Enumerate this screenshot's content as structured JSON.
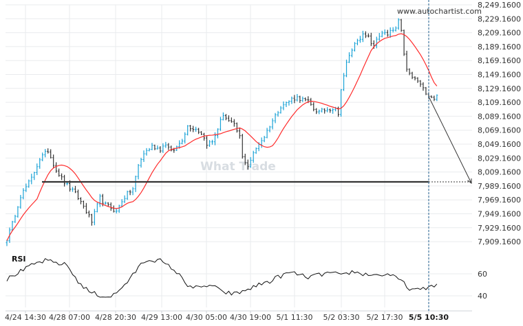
{
  "brand": {
    "site": "www.autochartist.com",
    "watermark": "What Trade"
  },
  "colors": {
    "candle": "#19a2d6",
    "bar": "#333333",
    "ma": "#ff2b2b",
    "level": "#333333",
    "grid": "#e9ebee",
    "axis_text": "#333333",
    "rsi": "#111111",
    "current": "#1e5d8c",
    "arrow": "#333333"
  },
  "chart_data": [
    {
      "type": "line",
      "panel": "price",
      "grid": true,
      "ylim": [
        7899,
        8259
      ],
      "y_ticks": [
        8249.16,
        8229.16,
        8209.16,
        8189.16,
        8169.16,
        8149.16,
        8129.16,
        8109.16,
        8089.16,
        8069.16,
        8049.16,
        8029.16,
        8009.16,
        7989.16,
        7969.16,
        7949.16,
        7929.16,
        7909.16
      ],
      "y_tick_labels": [
        "8,249.1600",
        "8,229.1600",
        "8,209.1600",
        "8,189.1600",
        "8,169.1600",
        "8,149.1600",
        "8,129.1600",
        "8,109.1600",
        "8,089.1600",
        "8,069.1600",
        "8,049.1600",
        "8,029.1600",
        "8,009.1600",
        "7,989.1600",
        "7,969.1600",
        "7,949.1600",
        "7,929.1600",
        "7,909.1600"
      ],
      "x_tick_labels": [
        "4/24 14:30",
        "4/28 07:00",
        "4/28 20:30",
        "4/29 13:00",
        "4/30 05:00",
        "4/30 19:00",
        "5/1 11:30",
        "5/2 03:30",
        "5/2 17:30",
        "5/5 10:30"
      ],
      "current_x_label": "5/5 10:30",
      "support_level": 7995,
      "projected_target": 7994,
      "price_anchors": [
        [
          0,
          7913
        ],
        [
          2,
          7935
        ],
        [
          5,
          7975
        ],
        [
          9,
          8000
        ],
        [
          12,
          8028
        ],
        [
          15,
          8040
        ],
        [
          18,
          8012
        ],
        [
          21,
          7994
        ],
        [
          25,
          7978
        ],
        [
          28,
          7960
        ],
        [
          31,
          7938
        ],
        [
          34,
          7972
        ],
        [
          36,
          7962
        ],
        [
          38,
          7958
        ],
        [
          40,
          7952
        ],
        [
          42,
          7968
        ],
        [
          44,
          7978
        ],
        [
          46,
          7985
        ],
        [
          48,
          8018
        ],
        [
          50,
          8036
        ],
        [
          53,
          8046
        ],
        [
          56,
          8042
        ],
        [
          58,
          8050
        ],
        [
          60,
          8038
        ],
        [
          62,
          8045
        ],
        [
          64,
          8056
        ],
        [
          66,
          8075
        ],
        [
          69,
          8071
        ],
        [
          71,
          8065
        ],
        [
          73,
          8050
        ],
        [
          75,
          8052
        ],
        [
          77,
          8072
        ],
        [
          79,
          8092
        ],
        [
          81,
          8082
        ],
        [
          83,
          8076
        ],
        [
          85,
          8060
        ],
        [
          86,
          8030
        ],
        [
          88,
          8018
        ],
        [
          90,
          8035
        ],
        [
          92,
          8050
        ],
        [
          94,
          8060
        ],
        [
          96,
          8076
        ],
        [
          98,
          8090
        ],
        [
          100,
          8104
        ],
        [
          102,
          8108
        ],
        [
          104,
          8114
        ],
        [
          106,
          8116
        ],
        [
          108,
          8113
        ],
        [
          110,
          8110
        ],
        [
          112,
          8100
        ],
        [
          114,
          8095
        ],
        [
          116,
          8098
        ],
        [
          118,
          8100
        ],
        [
          120,
          8102
        ],
        [
          121,
          8090
        ],
        [
          122,
          8130
        ],
        [
          124,
          8165
        ],
        [
          126,
          8185
        ],
        [
          128,
          8200
        ],
        [
          130,
          8205
        ],
        [
          132,
          8202
        ],
        [
          133,
          8195
        ],
        [
          134,
          8188
        ],
        [
          135,
          8200
        ],
        [
          137,
          8210
        ],
        [
          139,
          8205
        ],
        [
          140,
          8210
        ],
        [
          142,
          8215
        ],
        [
          143,
          8225
        ],
        [
          144,
          8210
        ],
        [
          145,
          8180
        ],
        [
          146,
          8155
        ],
        [
          148,
          8145
        ],
        [
          150,
          8140
        ],
        [
          152,
          8128
        ],
        [
          154,
          8120
        ],
        [
          156,
          8115
        ],
        [
          157,
          8118
        ]
      ],
      "series": [
        {
          "kind": "bars",
          "values_from": "price_anchors"
        },
        {
          "kind": "moving_average",
          "values_from": "price_anchors"
        }
      ]
    },
    {
      "type": "line",
      "panel": "indicator",
      "name": "RSI",
      "ylim": [
        30,
        75
      ],
      "y_ticks": [
        60,
        40
      ],
      "y_tick_labels": [
        "60",
        "40"
      ],
      "rsi_anchors": [
        [
          0,
          55
        ],
        [
          4,
          61
        ],
        [
          8,
          66
        ],
        [
          10,
          69
        ],
        [
          14,
          72
        ],
        [
          18,
          70
        ],
        [
          22,
          68
        ],
        [
          24,
          60
        ],
        [
          27,
          50
        ],
        [
          30,
          44
        ],
        [
          33,
          41
        ],
        [
          36,
          39
        ],
        [
          38,
          40
        ],
        [
          40,
          42
        ],
        [
          42,
          48
        ],
        [
          45,
          55
        ],
        [
          48,
          66
        ],
        [
          50,
          71
        ],
        [
          52,
          73
        ],
        [
          56,
          72
        ],
        [
          58,
          68
        ],
        [
          60,
          66
        ],
        [
          62,
          61
        ],
        [
          64,
          56
        ],
        [
          66,
          50
        ],
        [
          68,
          48
        ],
        [
          70,
          47
        ],
        [
          72,
          48
        ],
        [
          74,
          50
        ],
        [
          76,
          48
        ],
        [
          78,
          44
        ],
        [
          80,
          43
        ],
        [
          82,
          42
        ],
        [
          84,
          42
        ],
        [
          86,
          44
        ],
        [
          88,
          46
        ],
        [
          90,
          48
        ],
        [
          92,
          50
        ],
        [
          94,
          52
        ],
        [
          96,
          53
        ],
        [
          98,
          56
        ],
        [
          100,
          58
        ],
        [
          102,
          60
        ],
        [
          104,
          61
        ],
        [
          106,
          60
        ],
        [
          108,
          58
        ],
        [
          110,
          57
        ],
        [
          112,
          58
        ],
        [
          114,
          59
        ],
        [
          116,
          60
        ],
        [
          118,
          61
        ],
        [
          120,
          60
        ],
        [
          122,
          58
        ],
        [
          124,
          60
        ],
        [
          126,
          62
        ],
        [
          128,
          61
        ],
        [
          130,
          60
        ],
        [
          132,
          59
        ],
        [
          134,
          60
        ],
        [
          136,
          58
        ],
        [
          138,
          60
        ],
        [
          140,
          59
        ],
        [
          142,
          56
        ],
        [
          144,
          54
        ],
        [
          146,
          48
        ],
        [
          148,
          46
        ],
        [
          150,
          45
        ],
        [
          152,
          46
        ],
        [
          154,
          48
        ],
        [
          156,
          50
        ],
        [
          157,
          51
        ]
      ]
    }
  ]
}
